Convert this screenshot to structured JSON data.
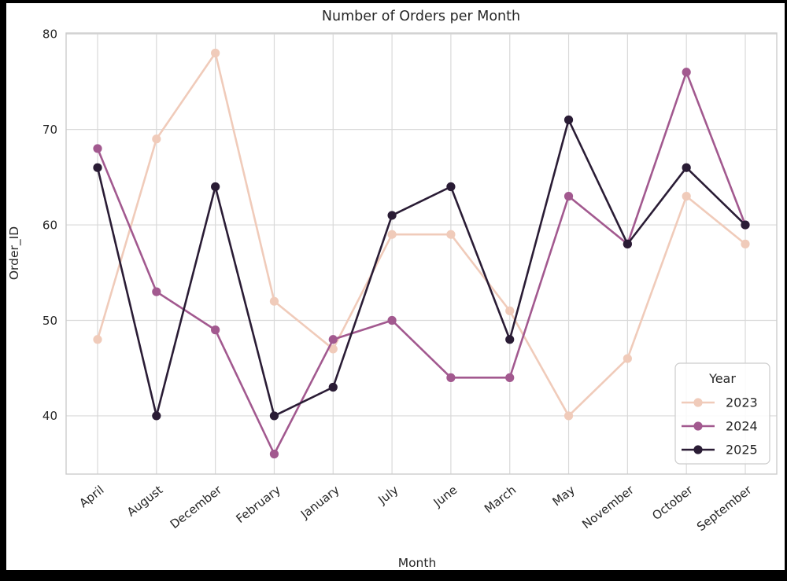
{
  "page": {
    "background_color": "#000000",
    "figure_background_color": "#ffffff"
  },
  "figure": {
    "title": "Number of Orders per Month",
    "xlabel": "Month",
    "ylabel": "Order_ID"
  },
  "legend": {
    "title": "Year",
    "entries": [
      {
        "label": "2023",
        "color": "#f0cbba"
      },
      {
        "label": "2024",
        "color": "#a2598f"
      },
      {
        "label": "2025",
        "color": "#2a1c35"
      }
    ],
    "position": "lower right"
  },
  "chart_data": {
    "type": "line",
    "title": "Number of Orders per Month",
    "xlabel": "Month",
    "ylabel": "Order_ID",
    "categories": [
      "April",
      "August",
      "December",
      "February",
      "January",
      "July",
      "June",
      "March",
      "May",
      "November",
      "October",
      "September"
    ],
    "series": [
      {
        "name": "2023",
        "color": "#f0cbba",
        "values": [
          48,
          69,
          78,
          52,
          47,
          59,
          59,
          51,
          40,
          46,
          63,
          58
        ]
      },
      {
        "name": "2024",
        "color": "#a2598f",
        "values": [
          68,
          53,
          49,
          36,
          48,
          50,
          44,
          44,
          63,
          58,
          76,
          60
        ]
      },
      {
        "name": "2025",
        "color": "#2a1c35",
        "values": [
          66,
          40,
          64,
          40,
          43,
          61,
          64,
          48,
          71,
          58,
          66,
          60
        ]
      }
    ],
    "yticks": [
      40,
      50,
      60,
      70,
      80
    ],
    "ylim": [
      33.9,
      80.1
    ],
    "grid": true,
    "grid_color": "#d9d9d9",
    "spine_color": "#cccccc",
    "legend_position": "lower right",
    "marker": "o"
  }
}
